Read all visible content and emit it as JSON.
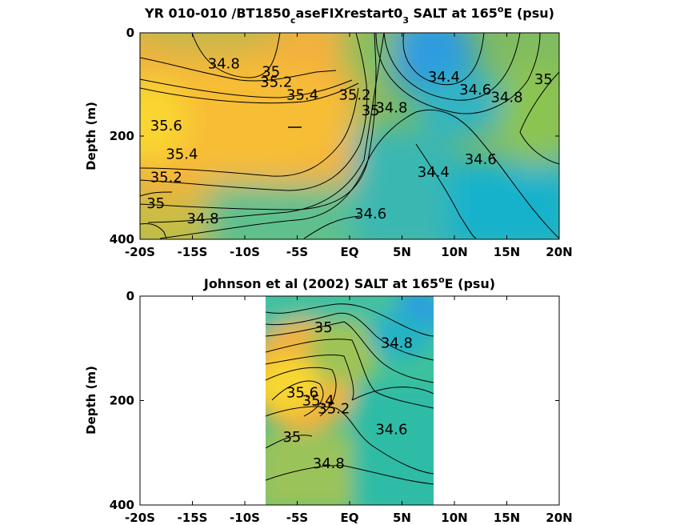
{
  "chart_data": [
    {
      "type": "heatmap",
      "title_main": "YR 010-010 /BT1850",
      "title_sub": "c",
      "title_mid": "aseFIXrestart0",
      "title_sub2": "3",
      "title_end": " SALT at 165",
      "title_sup": "o",
      "title_tail": "E (psu)",
      "ylabel": "Depth (m)",
      "xlim": [
        -20,
        20
      ],
      "ylim": [
        0,
        400
      ],
      "y_reversed": true,
      "x_ticks": [
        -20,
        -15,
        -10,
        -5,
        0,
        5,
        10,
        15,
        20
      ],
      "x_tick_labels": [
        "-20S",
        "-15S",
        "-10S",
        "-5S",
        "EQ",
        "5N",
        "10N",
        "15N",
        "20N"
      ],
      "y_ticks": [
        0,
        200,
        400
      ],
      "y_tick_labels": [
        "0",
        "200",
        "400"
      ],
      "colormap": "parula",
      "contour_labels": [
        {
          "text": "34.8",
          "lat": -12.0,
          "depth": 60
        },
        {
          "text": "35",
          "lat": -7.5,
          "depth": 75
        },
        {
          "text": "35.2",
          "lat": -7.0,
          "depth": 95
        },
        {
          "text": "35.4",
          "lat": -4.5,
          "depth": 120
        },
        {
          "text": "35.2",
          "lat": 0.5,
          "depth": 120
        },
        {
          "text": "35",
          "lat": 2.0,
          "depth": 150
        },
        {
          "text": "34.8",
          "lat": 4.0,
          "depth": 145
        },
        {
          "text": "34.4",
          "lat": 9.0,
          "depth": 85
        },
        {
          "text": "34.6",
          "lat": 12.0,
          "depth": 110
        },
        {
          "text": "34.8",
          "lat": 15.0,
          "depth": 125
        },
        {
          "text": "35",
          "lat": 18.5,
          "depth": 90
        },
        {
          "text": "35.6",
          "lat": -17.5,
          "depth": 180
        },
        {
          "text": "35.4",
          "lat": -16.0,
          "depth": 235
        },
        {
          "text": "35.2",
          "lat": -17.5,
          "depth": 280
        },
        {
          "text": "35",
          "lat": -18.5,
          "depth": 330
        },
        {
          "text": "34.8",
          "lat": -14.0,
          "depth": 360
        },
        {
          "text": "34.6",
          "lat": 2.0,
          "depth": 350
        },
        {
          "text": "34.6",
          "lat": 12.5,
          "depth": 245
        },
        {
          "text": "34.4",
          "lat": 8.0,
          "depth": 270
        }
      ]
    },
    {
      "type": "heatmap",
      "title_main": "Johnson et al (2002) SALT at 165",
      "title_sup": "o",
      "title_tail": "E (psu)",
      "ylabel": "Depth (m)",
      "xlim": [
        -20,
        20
      ],
      "ylim": [
        0,
        400
      ],
      "y_reversed": true,
      "data_lat_range": [
        -8,
        8
      ],
      "x_ticks": [
        -20,
        -15,
        -10,
        -5,
        0,
        5,
        10,
        15,
        20
      ],
      "x_tick_labels": [
        "-20S",
        "-15S",
        "-10S",
        "-5S",
        "EQ",
        "5N",
        "10N",
        "15N",
        "20N"
      ],
      "y_ticks": [
        0,
        200,
        400
      ],
      "y_tick_labels": [
        "0",
        "200",
        "400"
      ],
      "colormap": "parula",
      "contour_labels": [
        {
          "text": "35",
          "lat": -2.5,
          "depth": 60
        },
        {
          "text": "34.8",
          "lat": 4.5,
          "depth": 90
        },
        {
          "text": "35.6",
          "lat": -4.5,
          "depth": 185
        },
        {
          "text": "35.4",
          "lat": -3.0,
          "depth": 200
        },
        {
          "text": "35.2",
          "lat": -1.5,
          "depth": 215
        },
        {
          "text": "34.6",
          "lat": 4.0,
          "depth": 255
        },
        {
          "text": "35",
          "lat": -5.5,
          "depth": 270
        },
        {
          "text": "34.8",
          "lat": -2.0,
          "depth": 320
        }
      ]
    }
  ]
}
